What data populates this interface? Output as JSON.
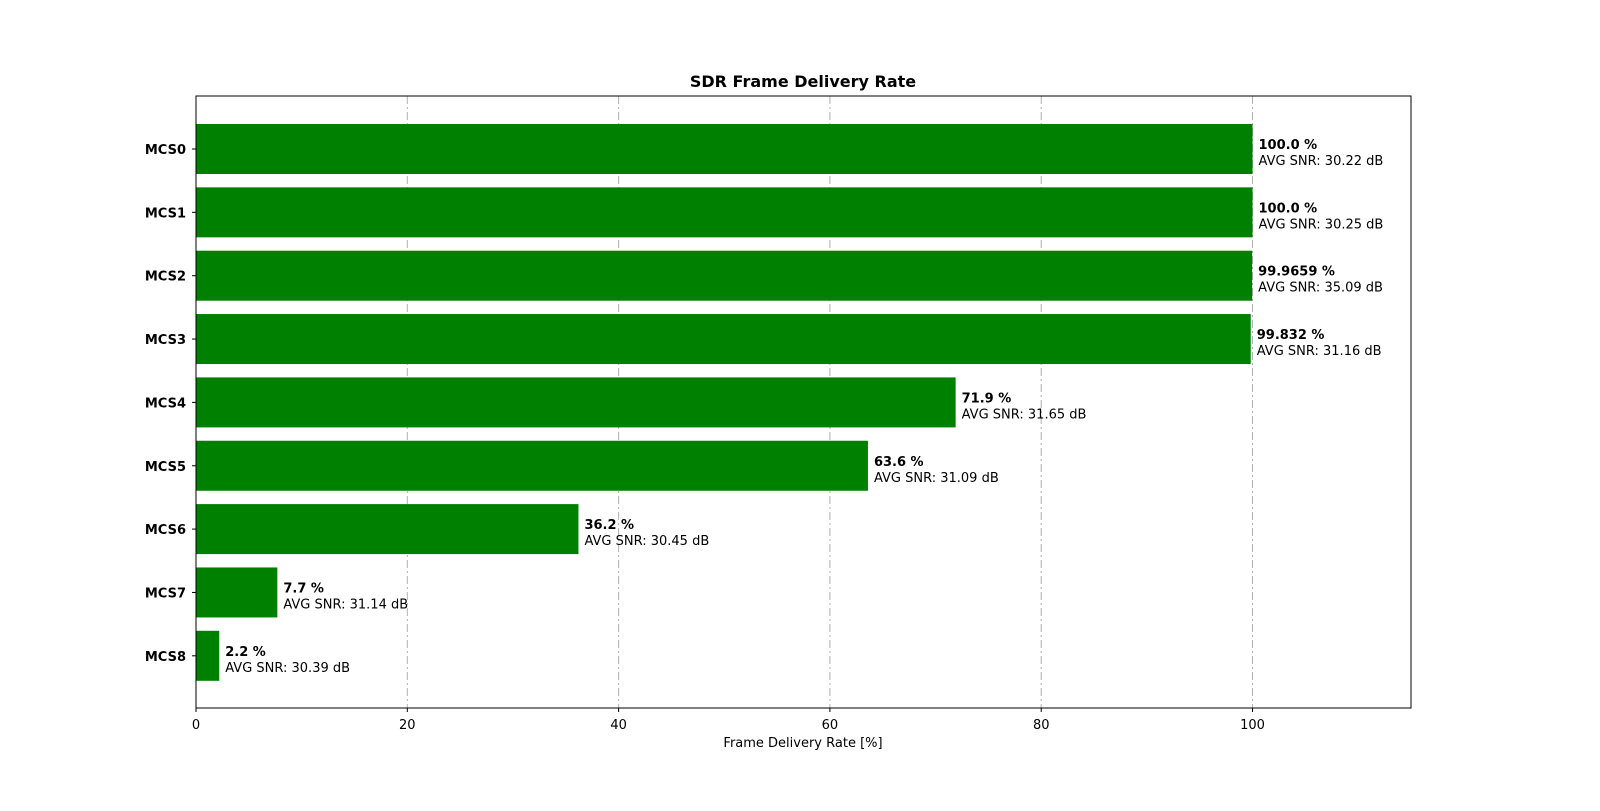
{
  "chart_data": {
    "type": "bar",
    "orientation": "horizontal",
    "title": "SDR Frame Delivery Rate",
    "xlabel": "Frame Delivery Rate [%]",
    "ylabel": "",
    "xlim": [
      0,
      115
    ],
    "xticks": [
      0,
      20,
      40,
      60,
      80,
      100
    ],
    "grid": "x, dash-dot",
    "bar_color": "#008000",
    "categories": [
      "MCS0",
      "MCS1",
      "MCS2",
      "MCS3",
      "MCS4",
      "MCS5",
      "MCS6",
      "MCS7",
      "MCS8"
    ],
    "values": [
      100.0,
      100.0,
      99.9659,
      99.832,
      71.9,
      63.6,
      36.2,
      7.7,
      2.2
    ],
    "value_labels": [
      "100.0 %",
      "100.0 %",
      "99.9659 %",
      "99.832 %",
      "71.9 %",
      "63.6 %",
      "36.2 %",
      "7.7 %",
      "2.2 %"
    ],
    "snr_labels": [
      "AVG SNR: 30.22 dB",
      "AVG SNR: 30.25 dB",
      "AVG SNR: 35.09 dB",
      "AVG SNR: 31.16 dB",
      "AVG SNR: 31.65 dB",
      "AVG SNR: 31.09 dB",
      "AVG SNR: 30.45 dB",
      "AVG SNR: 31.14 dB",
      "AVG SNR: 30.39 dB"
    ]
  }
}
